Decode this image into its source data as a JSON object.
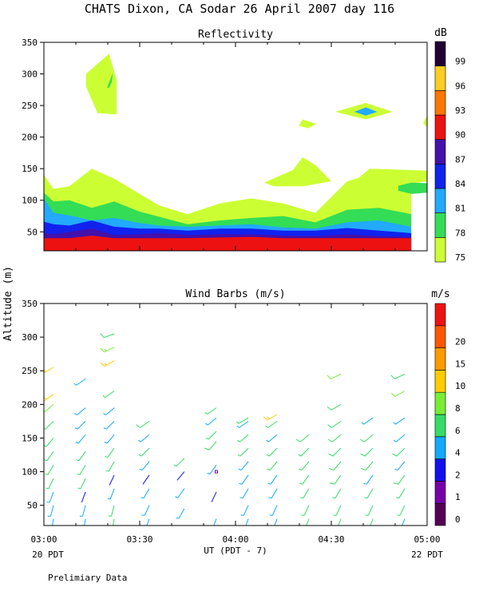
{
  "figure": {
    "title": "CHATS Dixon, CA  Sodar  26 April 2007  day 116",
    "xlabel": "UT  (PDT - 7)",
    "ylabel": "Altitude (m)",
    "left_date": "20 PDT",
    "right_date": "22 PDT",
    "footer": "Prelimiary Data"
  },
  "chart_data": [
    {
      "type": "heatmap",
      "title": "Reflectivity",
      "colorbar_unit": "dB",
      "x_ticks": [
        "03:00",
        "03:30",
        "04:00",
        "04:30",
        "05:00"
      ],
      "x_range_hours": [
        3.0,
        5.0
      ],
      "ylim": [
        20,
        350
      ],
      "y_ticks": [
        50,
        100,
        150,
        200,
        250,
        300,
        350
      ],
      "levels": [
        75,
        78,
        81,
        84,
        87,
        90,
        93,
        96,
        99
      ],
      "level_colors": [
        "#ccff33",
        "#33dd55",
        "#22aaff",
        "#1122ee",
        "#4411aa",
        "#ee1111",
        "#ff7700",
        "#ffcc22",
        "#220033"
      ],
      "times": [
        3.0,
        3.05,
        3.133,
        3.25,
        3.367,
        3.5,
        3.6,
        3.75,
        3.917,
        4.083,
        4.25,
        4.417,
        4.583,
        4.75,
        4.917
      ],
      "bands": [
        {
          "level": 75,
          "top": [
            140,
            118,
            122,
            150,
            134,
            110,
            92,
            78,
            95,
            103,
            95,
            80,
            130,
            145,
            145
          ]
        },
        {
          "level": 78,
          "top": [
            112,
            98,
            100,
            88,
            98,
            82,
            74,
            62,
            68,
            72,
            75,
            65,
            85,
            88,
            78
          ]
        },
        {
          "level": 81,
          "top": [
            102,
            80,
            76,
            68,
            72,
            64,
            60,
            58,
            60,
            62,
            57,
            55,
            65,
            68,
            58
          ]
        },
        {
          "level": 84,
          "top": [
            66,
            62,
            60,
            68,
            58,
            55,
            55,
            52,
            55,
            55,
            52,
            52,
            56,
            52,
            48
          ]
        },
        {
          "level": 87,
          "top": [
            48,
            46,
            50,
            55,
            45,
            46,
            48,
            45,
            46,
            46,
            44,
            43,
            46,
            43,
            42
          ]
        },
        {
          "level": 90,
          "top": [
            40,
            40,
            40,
            44,
            40,
            40,
            40,
            40,
            41,
            42,
            40,
            40,
            40,
            40,
            40
          ]
        }
      ],
      "patches": [
        {
          "level": 75,
          "label": "upper echo",
          "points": [
            [
              3.22,
              300
            ],
            [
              3.34,
              332
            ],
            [
              3.38,
              290
            ],
            [
              3.38,
              236
            ],
            [
              3.28,
              238
            ],
            [
              3.22,
              280
            ]
          ]
        },
        {
          "level": 78,
          "label": "upper echo core",
          "points": [
            [
              3.33,
              278
            ],
            [
              3.36,
              302
            ],
            [
              3.355,
              288
            ],
            [
              3.34,
              278
            ]
          ]
        },
        {
          "level": 75,
          "label": "elevated layer",
          "points": [
            [
              4.15,
              128
            ],
            [
              4.3,
              148
            ],
            [
              4.35,
              168
            ],
            [
              4.42,
              155
            ],
            [
              4.5,
              130
            ],
            [
              4.35,
              122
            ],
            [
              4.2,
              122
            ]
          ]
        },
        {
          "level": 75,
          "label": "elevated layer",
          "points": [
            [
              4.55,
              112
            ],
            [
              4.7,
              150
            ],
            [
              5.0,
              147
            ],
            [
              5.0,
              130
            ],
            [
              4.88,
              125
            ],
            [
              4.72,
              118
            ]
          ]
        },
        {
          "level": 78,
          "label": "elevated core",
          "points": [
            [
              4.85,
              123
            ],
            [
              4.92,
              128
            ],
            [
              5.0,
              127
            ],
            [
              5.0,
              112
            ],
            [
              4.92,
              110
            ],
            [
              4.85,
              115
            ]
          ]
        },
        {
          "level": 75,
          "label": "thin echo",
          "points": [
            [
              4.33,
              218
            ],
            [
              4.35,
              228
            ],
            [
              4.42,
              221
            ],
            [
              4.38,
              214
            ]
          ]
        },
        {
          "level": 75,
          "label": "thin echo",
          "points": [
            [
              4.98,
              222
            ],
            [
              5.0,
              235
            ],
            [
              5.0,
              215
            ]
          ]
        },
        {
          "level": 75,
          "label": "thin echo",
          "points": [
            [
              4.52,
              240
            ],
            [
              4.68,
              254
            ],
            [
              4.82,
              240
            ],
            [
              4.68,
              228
            ]
          ]
        },
        {
          "level": 81,
          "label": "thin echo core",
          "points": [
            [
              4.62,
              240
            ],
            [
              4.68,
              247
            ],
            [
              4.74,
              240
            ],
            [
              4.68,
              234
            ]
          ]
        }
      ]
    },
    {
      "type": "scatter",
      "title": "Wind Barbs (m/s)",
      "colorbar_unit": "m/s",
      "x_ticks": [
        "03:00",
        "03:30",
        "04:00",
        "04:30",
        "05:00"
      ],
      "x_range_hours": [
        3.0,
        5.0
      ],
      "ylim": [
        20,
        350
      ],
      "y_ticks": [
        50,
        100,
        150,
        200,
        250,
        300,
        350
      ],
      "color_levels": [
        0,
        1,
        2,
        4,
        6,
        8,
        10,
        15,
        20
      ],
      "color_bins": [
        "#550055",
        "#7700aa",
        "#1111ee",
        "#11aaff",
        "#33dd66",
        "#77ee33",
        "#ffcc00",
        "#ff9900",
        "#ff5500",
        "#ee1111"
      ],
      "barbs": [
        {
          "t": 3.05,
          "alt": 30,
          "speed": 3.1,
          "dir": 190
        },
        {
          "t": 3.05,
          "alt": 50,
          "speed": 3.3,
          "dir": 195
        },
        {
          "t": 3.05,
          "alt": 70,
          "speed": 3.5,
          "dir": 200
        },
        {
          "t": 3.05,
          "alt": 90,
          "speed": 4.1,
          "dir": 205
        },
        {
          "t": 3.05,
          "alt": 110,
          "speed": 4.4,
          "dir": 210
        },
        {
          "t": 3.05,
          "alt": 130,
          "speed": 4.6,
          "dir": 215
        },
        {
          "t": 3.05,
          "alt": 150,
          "speed": 4.9,
          "dir": 220
        },
        {
          "t": 3.05,
          "alt": 175,
          "speed": 5.5,
          "dir": 225
        },
        {
          "t": 3.05,
          "alt": 200,
          "speed": 6.2,
          "dir": 230
        },
        {
          "t": 3.05,
          "alt": 215,
          "speed": 8.5,
          "dir": 235
        },
        {
          "t": 3.05,
          "alt": 255,
          "speed": 8.6,
          "dir": 240
        },
        {
          "t": 3.217,
          "alt": 30,
          "speed": 3.2,
          "dir": 190
        },
        {
          "t": 3.217,
          "alt": 50,
          "speed": 3.5,
          "dir": 195
        },
        {
          "t": 3.217,
          "alt": 70,
          "speed": 1.5,
          "dir": 200
        },
        {
          "t": 3.217,
          "alt": 90,
          "speed": 4.0,
          "dir": 205
        },
        {
          "t": 3.217,
          "alt": 110,
          "speed": 4.2,
          "dir": 210
        },
        {
          "t": 3.217,
          "alt": 130,
          "speed": 4.5,
          "dir": 215
        },
        {
          "t": 3.217,
          "alt": 155,
          "speed": 3.8,
          "dir": 220
        },
        {
          "t": 3.217,
          "alt": 175,
          "speed": 3.9,
          "dir": 225
        },
        {
          "t": 3.217,
          "alt": 195,
          "speed": 3.7,
          "dir": 230
        },
        {
          "t": 3.217,
          "alt": 238,
          "speed": 3.6,
          "dir": 235
        },
        {
          "t": 3.367,
          "alt": 30,
          "speed": 4.1,
          "dir": 190
        },
        {
          "t": 3.367,
          "alt": 50,
          "speed": 4.3,
          "dir": 195
        },
        {
          "t": 3.367,
          "alt": 75,
          "speed": 2.8,
          "dir": 200
        },
        {
          "t": 3.367,
          "alt": 95,
          "speed": 1.6,
          "dir": 205
        },
        {
          "t": 3.367,
          "alt": 115,
          "speed": 4.3,
          "dir": 210
        },
        {
          "t": 3.367,
          "alt": 135,
          "speed": 4.5,
          "dir": 215
        },
        {
          "t": 3.367,
          "alt": 155,
          "speed": 3.7,
          "dir": 220
        },
        {
          "t": 3.367,
          "alt": 175,
          "speed": 3.9,
          "dir": 225
        },
        {
          "t": 3.367,
          "alt": 195,
          "speed": 3.8,
          "dir": 230
        },
        {
          "t": 3.367,
          "alt": 220,
          "speed": 4.1,
          "dir": 235
        },
        {
          "t": 3.367,
          "alt": 265,
          "speed": 8.7,
          "dir": 240
        },
        {
          "t": 3.367,
          "alt": 285,
          "speed": 7.8,
          "dir": 245
        },
        {
          "t": 3.367,
          "alt": 305,
          "speed": 5.1,
          "dir": 250
        },
        {
          "t": 3.55,
          "alt": 30,
          "speed": 3.5,
          "dir": 200
        },
        {
          "t": 3.55,
          "alt": 50,
          "speed": 3.7,
          "dir": 205
        },
        {
          "t": 3.55,
          "alt": 75,
          "speed": 3.6,
          "dir": 210
        },
        {
          "t": 3.55,
          "alt": 95,
          "speed": 1.4,
          "dir": 215
        },
        {
          "t": 3.55,
          "alt": 115,
          "speed": 3.9,
          "dir": 220
        },
        {
          "t": 3.55,
          "alt": 135,
          "speed": 4.4,
          "dir": 225
        },
        {
          "t": 3.55,
          "alt": 155,
          "speed": 3.8,
          "dir": 230
        },
        {
          "t": 3.55,
          "alt": 175,
          "speed": 5.1,
          "dir": 235
        },
        {
          "t": 3.733,
          "alt": 45,
          "speed": 3.4,
          "dir": 210
        },
        {
          "t": 3.733,
          "alt": 75,
          "speed": 3.6,
          "dir": 215
        },
        {
          "t": 3.733,
          "alt": 100,
          "speed": 1.3,
          "dir": 220
        },
        {
          "t": 3.733,
          "alt": 120,
          "speed": 4.3,
          "dir": 225
        },
        {
          "t": 3.9,
          "alt": 30,
          "speed": 3.3,
          "dir": 200
        },
        {
          "t": 3.9,
          "alt": 70,
          "speed": 1.2,
          "dir": 205
        },
        {
          "t": 3.9,
          "alt": 100,
          "speed": 0.8,
          "dir": 210
        },
        {
          "t": 3.9,
          "alt": 110,
          "speed": 3.5,
          "dir": 215
        },
        {
          "t": 3.9,
          "alt": 145,
          "speed": 5.2,
          "dir": 220
        },
        {
          "t": 3.9,
          "alt": 160,
          "speed": 4.8,
          "dir": 225
        },
        {
          "t": 3.9,
          "alt": 180,
          "speed": 3.9,
          "dir": 230
        },
        {
          "t": 3.9,
          "alt": 195,
          "speed": 4.7,
          "dir": 235
        },
        {
          "t": 4.067,
          "alt": 30,
          "speed": 3.1,
          "dir": 200
        },
        {
          "t": 4.067,
          "alt": 50,
          "speed": 3.3,
          "dir": 205
        },
        {
          "t": 4.067,
          "alt": 75,
          "speed": 3.4,
          "dir": 210
        },
        {
          "t": 4.067,
          "alt": 95,
          "speed": 3.6,
          "dir": 215
        },
        {
          "t": 4.067,
          "alt": 115,
          "speed": 3.8,
          "dir": 220
        },
        {
          "t": 4.067,
          "alt": 135,
          "speed": 4.2,
          "dir": 225
        },
        {
          "t": 4.067,
          "alt": 155,
          "speed": 4.5,
          "dir": 230
        },
        {
          "t": 4.067,
          "alt": 175,
          "speed": 3.7,
          "dir": 235
        },
        {
          "t": 4.067,
          "alt": 180,
          "speed": 4.6,
          "dir": 240
        },
        {
          "t": 4.217,
          "alt": 30,
          "speed": 3.2,
          "dir": 200
        },
        {
          "t": 4.217,
          "alt": 50,
          "speed": 3.4,
          "dir": 205
        },
        {
          "t": 4.217,
          "alt": 75,
          "speed": 3.6,
          "dir": 210
        },
        {
          "t": 4.217,
          "alt": 95,
          "speed": 3.8,
          "dir": 215
        },
        {
          "t": 4.217,
          "alt": 115,
          "speed": 4.1,
          "dir": 220
        },
        {
          "t": 4.217,
          "alt": 135,
          "speed": 4.4,
          "dir": 225
        },
        {
          "t": 4.217,
          "alt": 155,
          "speed": 3.9,
          "dir": 230
        },
        {
          "t": 4.217,
          "alt": 175,
          "speed": 4.0,
          "dir": 235
        },
        {
          "t": 4.217,
          "alt": 185,
          "speed": 9.5,
          "dir": 240
        },
        {
          "t": 4.383,
          "alt": 30,
          "speed": 4.4,
          "dir": 200
        },
        {
          "t": 4.383,
          "alt": 50,
          "speed": 4.5,
          "dir": 205
        },
        {
          "t": 4.383,
          "alt": 75,
          "speed": 4.6,
          "dir": 210
        },
        {
          "t": 4.383,
          "alt": 95,
          "speed": 4.7,
          "dir": 215
        },
        {
          "t": 4.383,
          "alt": 115,
          "speed": 4.8,
          "dir": 220
        },
        {
          "t": 4.383,
          "alt": 135,
          "speed": 4.9,
          "dir": 225
        },
        {
          "t": 4.383,
          "alt": 155,
          "speed": 5.0,
          "dir": 230
        },
        {
          "t": 4.55,
          "alt": 30,
          "speed": 4.3,
          "dir": 200
        },
        {
          "t": 4.55,
          "alt": 50,
          "speed": 4.6,
          "dir": 205
        },
        {
          "t": 4.55,
          "alt": 75,
          "speed": 4.8,
          "dir": 210
        },
        {
          "t": 4.55,
          "alt": 95,
          "speed": 5.0,
          "dir": 215
        },
        {
          "t": 4.55,
          "alt": 115,
          "speed": 5.2,
          "dir": 220
        },
        {
          "t": 4.55,
          "alt": 135,
          "speed": 5.3,
          "dir": 225
        },
        {
          "t": 4.55,
          "alt": 155,
          "speed": 5.4,
          "dir": 230
        },
        {
          "t": 4.55,
          "alt": 175,
          "speed": 5.6,
          "dir": 235
        },
        {
          "t": 4.55,
          "alt": 200,
          "speed": 5.8,
          "dir": 240
        },
        {
          "t": 4.55,
          "alt": 245,
          "speed": 7.1,
          "dir": 245
        },
        {
          "t": 4.717,
          "alt": 30,
          "speed": 4.5,
          "dir": 200
        },
        {
          "t": 4.717,
          "alt": 50,
          "speed": 4.7,
          "dir": 205
        },
        {
          "t": 4.717,
          "alt": 75,
          "speed": 4.9,
          "dir": 210
        },
        {
          "t": 4.717,
          "alt": 95,
          "speed": 3.8,
          "dir": 215
        },
        {
          "t": 4.717,
          "alt": 115,
          "speed": 5.1,
          "dir": 220
        },
        {
          "t": 4.717,
          "alt": 135,
          "speed": 5.2,
          "dir": 225
        },
        {
          "t": 4.717,
          "alt": 155,
          "speed": 5.3,
          "dir": 230
        },
        {
          "t": 4.717,
          "alt": 180,
          "speed": 3.2,
          "dir": 235
        },
        {
          "t": 4.883,
          "alt": 30,
          "speed": 3.6,
          "dir": 200
        },
        {
          "t": 4.883,
          "alt": 50,
          "speed": 4.8,
          "dir": 205
        },
        {
          "t": 4.883,
          "alt": 75,
          "speed": 4.9,
          "dir": 210
        },
        {
          "t": 4.883,
          "alt": 95,
          "speed": 5.0,
          "dir": 215
        },
        {
          "t": 4.883,
          "alt": 115,
          "speed": 3.7,
          "dir": 220
        },
        {
          "t": 4.883,
          "alt": 135,
          "speed": 5.1,
          "dir": 225
        },
        {
          "t": 4.883,
          "alt": 155,
          "speed": 3.8,
          "dir": 230
        },
        {
          "t": 4.883,
          "alt": 180,
          "speed": 3.9,
          "dir": 235
        },
        {
          "t": 4.883,
          "alt": 220,
          "speed": 6.5,
          "dir": 240
        },
        {
          "t": 4.883,
          "alt": 245,
          "speed": 5.5,
          "dir": 245
        }
      ]
    }
  ]
}
